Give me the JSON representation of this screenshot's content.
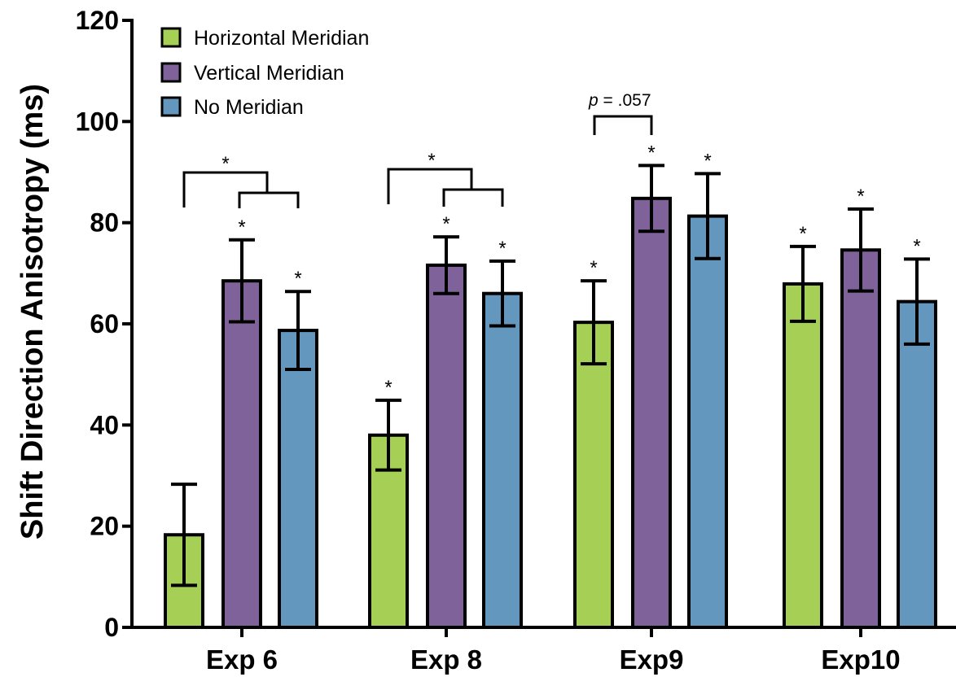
{
  "chart_data": {
    "type": "bar",
    "ylabel": "Shift Direction Anisotropy (ms)",
    "xlabel": "",
    "ylim": [
      0,
      120
    ],
    "yticks": [
      "0",
      "20",
      "40",
      "60",
      "80",
      "100",
      "120"
    ],
    "categories": [
      "Exp 6",
      "Exp 8",
      "Exp9",
      "Exp10"
    ],
    "legend_position": "top-left",
    "series": [
      {
        "name": "Horizontal Meridian",
        "color": "#a6cf55",
        "values": [
          18.3,
          38.0,
          60.3,
          67.9
        ],
        "errors": [
          10.0,
          6.9,
          8.2,
          7.4
        ],
        "stars": [
          "",
          "*",
          "*",
          "*"
        ]
      },
      {
        "name": "Vertical Meridian",
        "color": "#7f6299",
        "values": [
          68.5,
          71.6,
          84.8,
          74.6
        ],
        "errors": [
          8.1,
          5.6,
          6.5,
          8.1
        ],
        "stars": [
          "*",
          "*",
          "*",
          "*"
        ]
      },
      {
        "name": "No Meridian",
        "color": "#6397be",
        "values": [
          58.7,
          66.0,
          81.3,
          64.4
        ],
        "errors": [
          7.7,
          6.4,
          8.4,
          8.4
        ],
        "stars": [
          "*",
          "*",
          "*",
          "*"
        ]
      }
    ],
    "annotations": [
      {
        "text": "*"
      },
      {
        "text": "*"
      },
      {
        "text_italic": "p",
        "text": " = .057"
      }
    ]
  }
}
